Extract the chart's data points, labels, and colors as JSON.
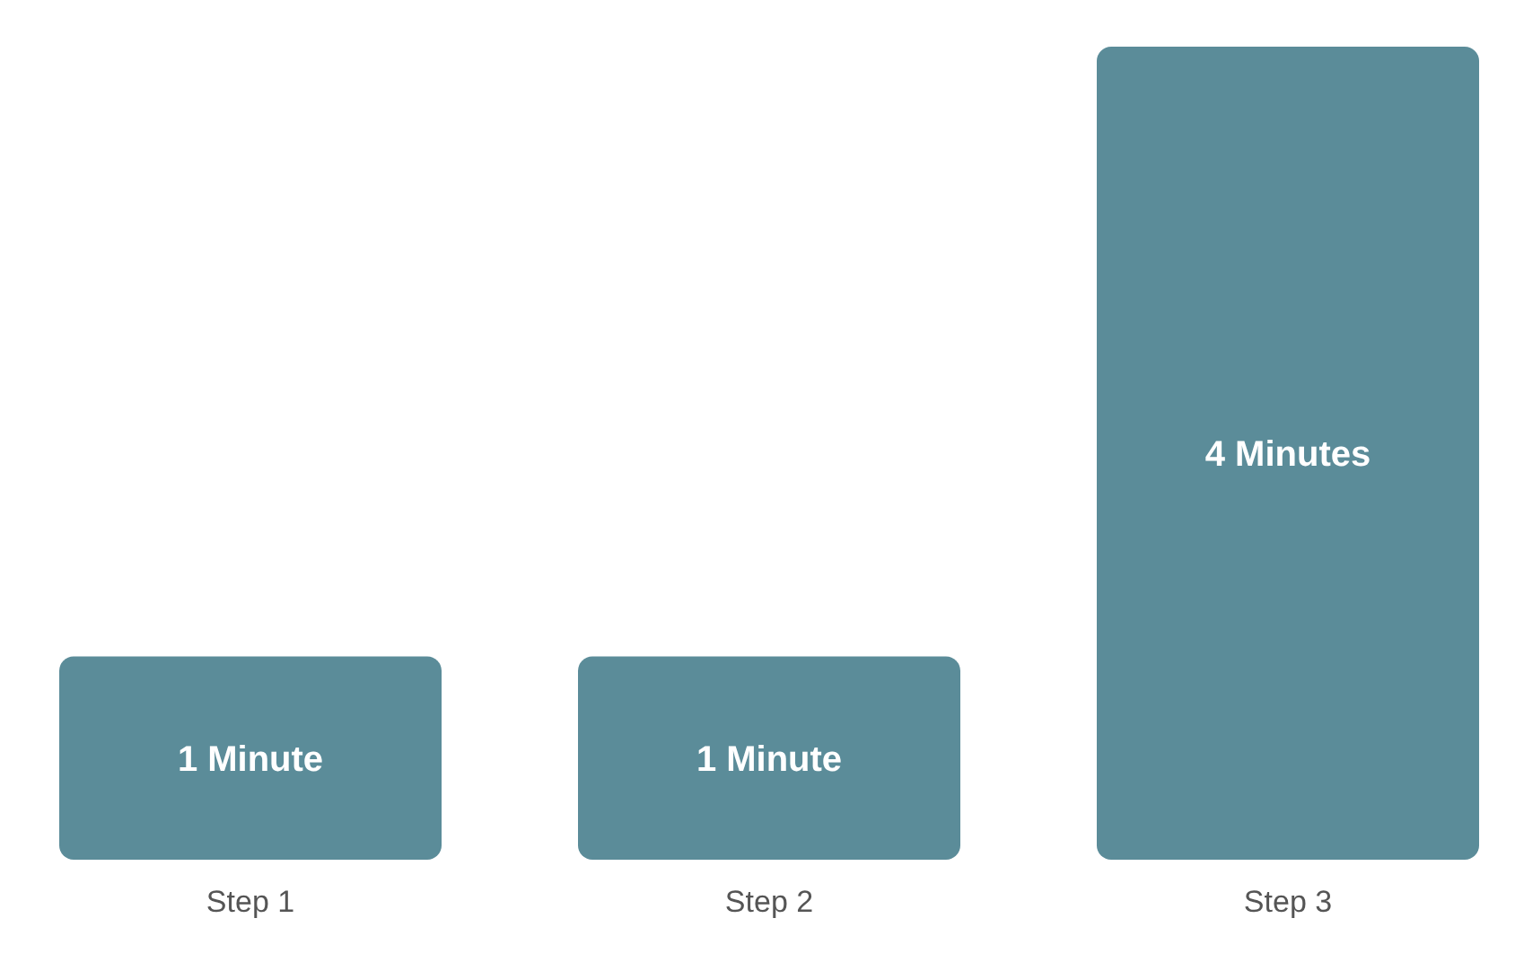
{
  "chart_data": {
    "type": "bar",
    "categories": [
      "Step 1",
      "Step 2",
      "Step 3"
    ],
    "values": [
      1,
      1,
      4
    ],
    "value_labels": [
      "1 Minute",
      "1 Minute",
      "4 Minutes"
    ],
    "color": "#5b8c99"
  }
}
